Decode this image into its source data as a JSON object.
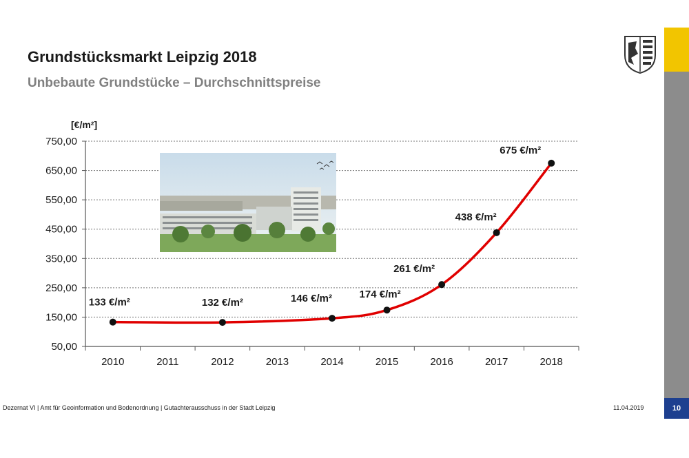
{
  "header": {
    "title": "Grundstücksmarkt Leipzig 2018",
    "subtitle": "Unbebaute Grundstücke – Durchschnittspreise"
  },
  "footer": {
    "text": "Dezernat VI | Amt für Geoinformation und Bodenordnung | Gutachterausschuss in der Stadt Leipzig",
    "date": "11.04.2019",
    "page_number": "10"
  },
  "colors": {
    "line": "#e00000",
    "marker": "#111111",
    "accent_yellow": "#f2c500",
    "accent_grey": "#8c8c8c",
    "page_box": "#1d3f8f"
  },
  "icons": {
    "coat_of_arms": "leipzig-coat-of-arms-icon"
  },
  "chart_data": {
    "type": "line",
    "ylabel": "[€/m²]",
    "ylim": [
      50,
      750
    ],
    "y_ticks": [
      "50,00",
      "150,00",
      "250,00",
      "350,00",
      "450,00",
      "550,00",
      "650,00",
      "750,00"
    ],
    "y_tick_values": [
      50,
      150,
      250,
      350,
      450,
      550,
      650,
      750
    ],
    "categories": [
      "2010",
      "2011",
      "2012",
      "2013",
      "2014",
      "2015",
      "2016",
      "2017",
      "2018"
    ],
    "series": [
      {
        "points": [
          {
            "x": "2010",
            "y": 133,
            "label": "133 €/m²"
          },
          {
            "x": "2012",
            "y": 132,
            "label": "132 €/m²"
          },
          {
            "x": "2014",
            "y": 146,
            "label": "146 €/m²"
          },
          {
            "x": "2015",
            "y": 174,
            "label": "174 €/m²"
          },
          {
            "x": "2016",
            "y": 261,
            "label": "261 €/m²"
          },
          {
            "x": "2017",
            "y": 438,
            "label": "438 €/m²"
          },
          {
            "x": "2018",
            "y": 675,
            "label": "675 €/m²"
          }
        ]
      }
    ],
    "grid": true
  }
}
